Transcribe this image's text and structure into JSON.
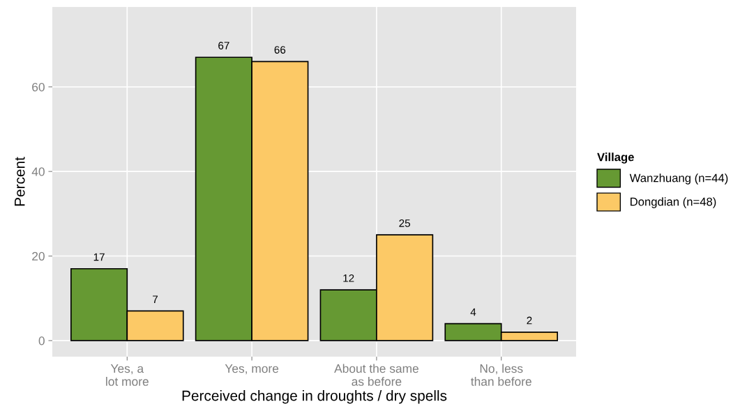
{
  "chart_data": {
    "type": "bar",
    "xlabel": "Perceived change in droughts / dry spells",
    "ylabel": "Percent",
    "legend_title": "Village",
    "categories": [
      "Yes, a\nlot more",
      "Yes, more",
      "About the same\nas before",
      "No, less\nthan before"
    ],
    "series": [
      {
        "name": "Wanzhuang (n=44)",
        "color": "#669933",
        "values": [
          17,
          67,
          12,
          4
        ]
      },
      {
        "name": "Dongdian (n=48)",
        "color": "#fcc966",
        "values": [
          7,
          66,
          25,
          2
        ]
      }
    ],
    "ylim": [
      -3.8,
      78.9
    ],
    "yticks": [
      0,
      20,
      40,
      60
    ],
    "grid": true,
    "legend": "right",
    "data_labels": true
  }
}
